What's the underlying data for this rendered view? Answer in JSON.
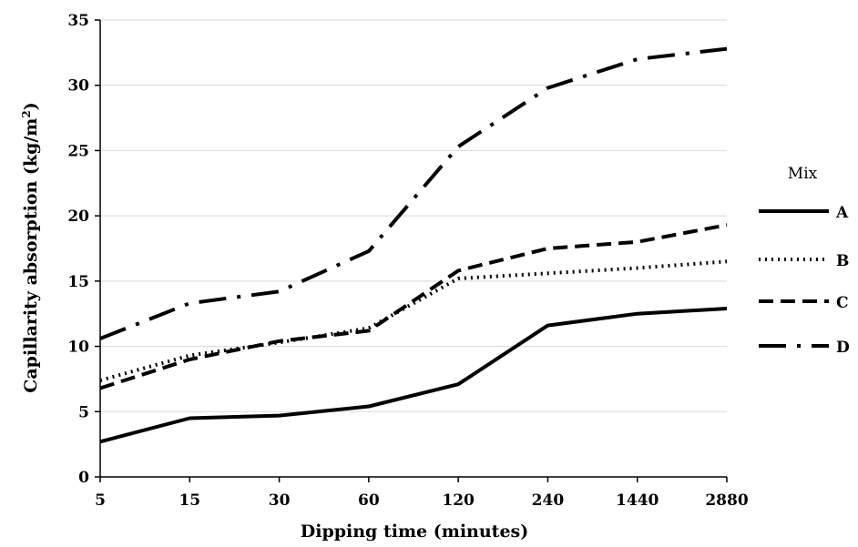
{
  "chart_data": {
    "type": "line",
    "title": "",
    "xlabel": "Dipping time (minutes)",
    "ylabel_main": "Capillarity absorption (kg/m",
    "ylabel_sup": "2",
    "ylabel_close": ")",
    "categories": [
      "5",
      "15",
      "30",
      "60",
      "120",
      "240",
      "1440",
      "2880"
    ],
    "ylim": [
      0,
      35
    ],
    "yticks": [
      0,
      5,
      10,
      15,
      20,
      25,
      30,
      35
    ],
    "grid": "horizontal",
    "legend_title": "Mix",
    "legend_position": "right",
    "series": [
      {
        "name": "A",
        "style": "solid",
        "values": [
          2.7,
          4.5,
          4.7,
          5.4,
          7.1,
          11.6,
          12.5,
          12.9
        ]
      },
      {
        "name": "B",
        "style": "dotted",
        "values": [
          7.4,
          9.3,
          10.3,
          11.4,
          15.2,
          15.6,
          16.0,
          16.5
        ]
      },
      {
        "name": "C",
        "style": "dashed",
        "values": [
          6.8,
          9.0,
          10.4,
          11.2,
          15.8,
          17.5,
          18.0,
          19.3
        ]
      },
      {
        "name": "D",
        "style": "dashdot",
        "values": [
          10.6,
          13.3,
          14.2,
          17.3,
          25.3,
          29.8,
          32.0,
          32.8
        ]
      }
    ],
    "colors": {
      "line": "#000000",
      "grid": "#d9d9d9"
    }
  }
}
